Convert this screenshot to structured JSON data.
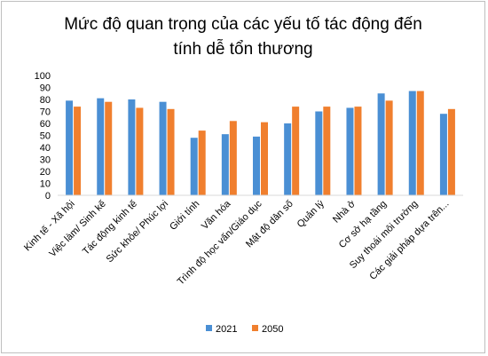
{
  "chart_data": {
    "type": "bar",
    "title_lines": [
      "Mức độ quan trọng của các yếu tố tác động đến",
      "tính  dễ tổn thương"
    ],
    "categories": [
      "Kinh tế - Xã hội",
      "Việc làm/ Sinh kế",
      "Tác động kinh tế",
      "Sức khỏe/ Phúc lợi",
      "Giới tính",
      "Văn hóa",
      "Trình độ học vấn/Giáo dục",
      "Mật độ dân số",
      "Quản lý",
      "Nhà ở",
      "Cơ sở hạ tầng",
      "Suy thoái môi trường",
      "Các giải pháp dựa trên..."
    ],
    "series": [
      {
        "name": "2021",
        "color": "#4a8fd4",
        "values": [
          79,
          81,
          80,
          78,
          48,
          51,
          49,
          60,
          70,
          73,
          85,
          87,
          68
        ]
      },
      {
        "name": "2050",
        "color": "#f07f2e",
        "values": [
          74,
          78,
          73,
          72,
          54,
          62,
          61,
          74,
          74,
          74,
          79,
          87,
          72
        ]
      }
    ],
    "ylim": [
      0,
      100
    ],
    "yticks": [
      0,
      10,
      20,
      30,
      40,
      50,
      60,
      70,
      80,
      90,
      100
    ],
    "grid": false,
    "legend": "bottom"
  }
}
